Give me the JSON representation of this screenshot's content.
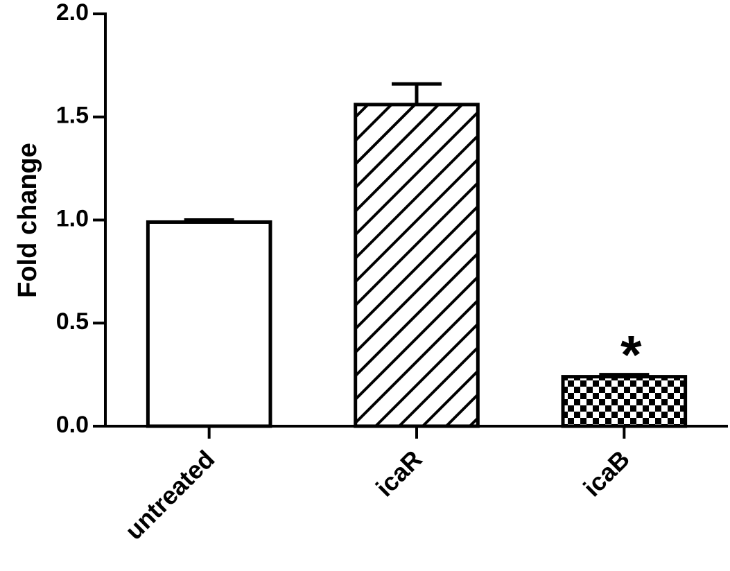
{
  "chart_data": {
    "type": "bar",
    "y_label": "Fold change",
    "categories": [
      "untreated",
      "icaR",
      "icaB"
    ],
    "values": [
      0.99,
      1.56,
      0.24
    ],
    "errors": [
      0.01,
      0.1,
      0.01
    ],
    "patterns": [
      "none",
      "hatch",
      "checker"
    ],
    "color": "#000000",
    "ylim": [
      0,
      2
    ],
    "yticks": [
      {
        "value": 0,
        "label": "0.0"
      },
      {
        "value": 0.5,
        "label": "0.5"
      },
      {
        "value": 1,
        "label": "1.0"
      },
      {
        "value": 1.5,
        "label": "1.5"
      },
      {
        "value": 2,
        "label": "2.0"
      }
    ],
    "annotations": [
      {
        "text": "*",
        "x": "icaB"
      }
    ]
  }
}
